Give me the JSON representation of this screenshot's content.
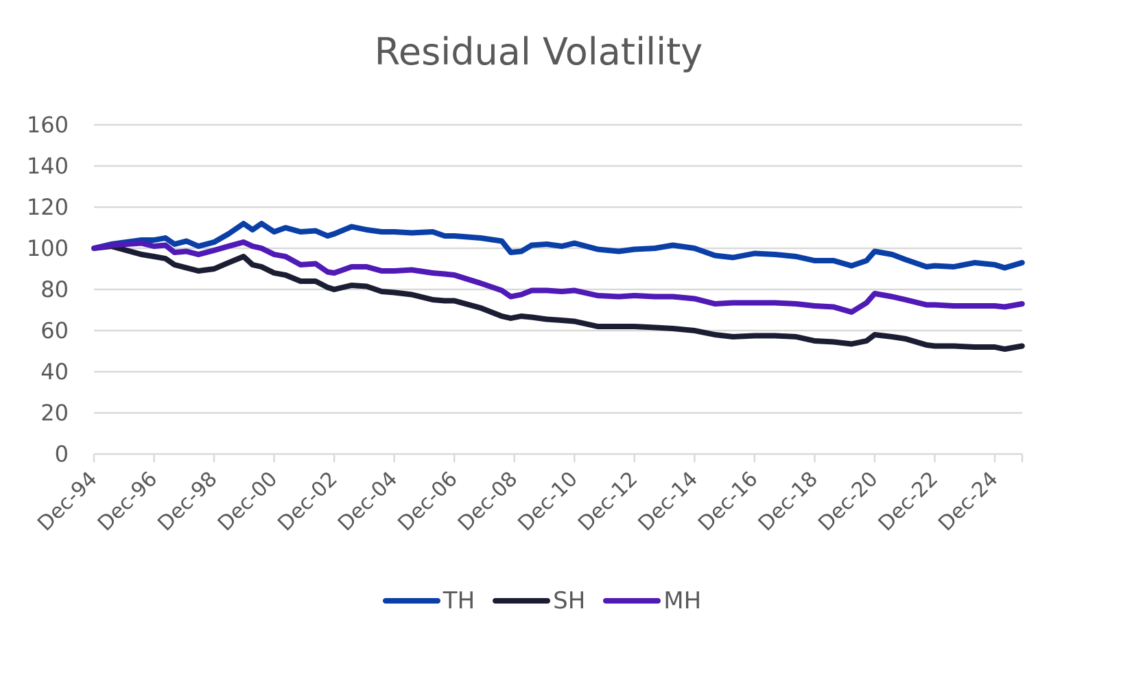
{
  "chart_data": {
    "type": "line",
    "title": "Residual Volatility",
    "xlabel": "",
    "ylabel": "",
    "ylim": [
      0,
      160
    ],
    "yticks": [
      0,
      20,
      40,
      60,
      80,
      100,
      120,
      140,
      160
    ],
    "xlim": [
      1994.92,
      2025.83
    ],
    "xticks": [
      {
        "x": 1994.92,
        "label": "Dec-94"
      },
      {
        "x": 1996.92,
        "label": "Dec-96"
      },
      {
        "x": 1998.92,
        "label": "Dec-98"
      },
      {
        "x": 2000.92,
        "label": "Dec-00"
      },
      {
        "x": 2002.92,
        "label": "Dec-02"
      },
      {
        "x": 2004.92,
        "label": "Dec-04"
      },
      {
        "x": 2006.92,
        "label": "Dec-06"
      },
      {
        "x": 2008.92,
        "label": "Dec-08"
      },
      {
        "x": 2010.92,
        "label": "Dec-10"
      },
      {
        "x": 2012.92,
        "label": "Dec-12"
      },
      {
        "x": 2014.92,
        "label": "Dec-14"
      },
      {
        "x": 2016.92,
        "label": "Dec-16"
      },
      {
        "x": 2018.92,
        "label": "Dec-18"
      },
      {
        "x": 2020.92,
        "label": "Dec-20"
      },
      {
        "x": 2022.92,
        "label": "Dec-22"
      },
      {
        "x": 2024.92,
        "label": "Dec-24"
      }
    ],
    "grid": true,
    "legend_position": "bottom",
    "x": [
      1994.92,
      1995.5,
      1996.0,
      1996.5,
      1996.92,
      1997.3,
      1997.6,
      1998.0,
      1998.4,
      1998.92,
      1999.4,
      1999.9,
      2000.2,
      2000.5,
      2000.92,
      2001.3,
      2001.8,
      2002.3,
      2002.7,
      2002.92,
      2003.5,
      2004.0,
      2004.5,
      2004.92,
      2005.5,
      2006.2,
      2006.6,
      2006.92,
      2007.8,
      2008.5,
      2008.8,
      2009.15,
      2009.5,
      2010.0,
      2010.5,
      2010.92,
      2011.7,
      2012.4,
      2012.92,
      2013.6,
      2014.2,
      2014.92,
      2015.6,
      2016.2,
      2016.92,
      2017.6,
      2018.3,
      2018.92,
      2019.55,
      2020.15,
      2020.65,
      2020.92,
      2021.5,
      2021.95,
      2022.65,
      2022.92,
      2023.55,
      2024.25,
      2024.92,
      2025.25,
      2025.83
    ],
    "series": [
      {
        "name": "TH",
        "color": "#0a3fa8",
        "values": [
          100,
          102,
          103,
          104,
          104,
          105,
          102,
          103.5,
          101,
          103,
          107,
          112,
          109,
          112,
          108,
          110,
          108,
          108.5,
          106,
          107,
          110.5,
          109,
          108,
          108,
          107.5,
          108,
          106,
          106,
          105,
          103.5,
          98,
          98.5,
          101.5,
          102,
          101,
          102.5,
          99.5,
          98.5,
          99.5,
          100,
          101.5,
          100,
          96.5,
          95.5,
          97.5,
          97,
          96,
          94,
          94,
          91.5,
          94,
          98.5,
          97,
          94.5,
          91,
          91.5,
          91,
          93,
          92,
          90.5,
          93
        ]
      },
      {
        "name": "SH",
        "color": "#1b1d33",
        "values": [
          100,
          101,
          99,
          97,
          96,
          95,
          92,
          90.5,
          89,
          90,
          93,
          96,
          92,
          91,
          88,
          87,
          84,
          84,
          81,
          80,
          82,
          81.5,
          79,
          78.5,
          77.5,
          75,
          74.5,
          74.5,
          71,
          67,
          66,
          67,
          66.5,
          65.5,
          65,
          64.5,
          62,
          62,
          62,
          61.5,
          61,
          60,
          58,
          57,
          57.5,
          57.5,
          57,
          55,
          54.5,
          53.5,
          55,
          58,
          57,
          56,
          53,
          52.5,
          52.5,
          52,
          52,
          51,
          52.5
        ]
      },
      {
        "name": "MH",
        "color": "#4f1ab6",
        "values": [
          100,
          101.5,
          102,
          102.5,
          101,
          101.5,
          98,
          98.5,
          97,
          99,
          101,
          103,
          101,
          100,
          97,
          96,
          92,
          92.5,
          88.5,
          88,
          91,
          91,
          89,
          89,
          89.5,
          88,
          87.5,
          87,
          83,
          79.5,
          76.5,
          77.5,
          79.5,
          79.5,
          79,
          79.5,
          77,
          76.5,
          77,
          76.5,
          76.5,
          75.5,
          73,
          73.5,
          73.5,
          73.5,
          73,
          72,
          71.5,
          69,
          73.5,
          78,
          76.5,
          75,
          72.5,
          72.5,
          72,
          72,
          72,
          71.5,
          73
        ]
      }
    ]
  }
}
